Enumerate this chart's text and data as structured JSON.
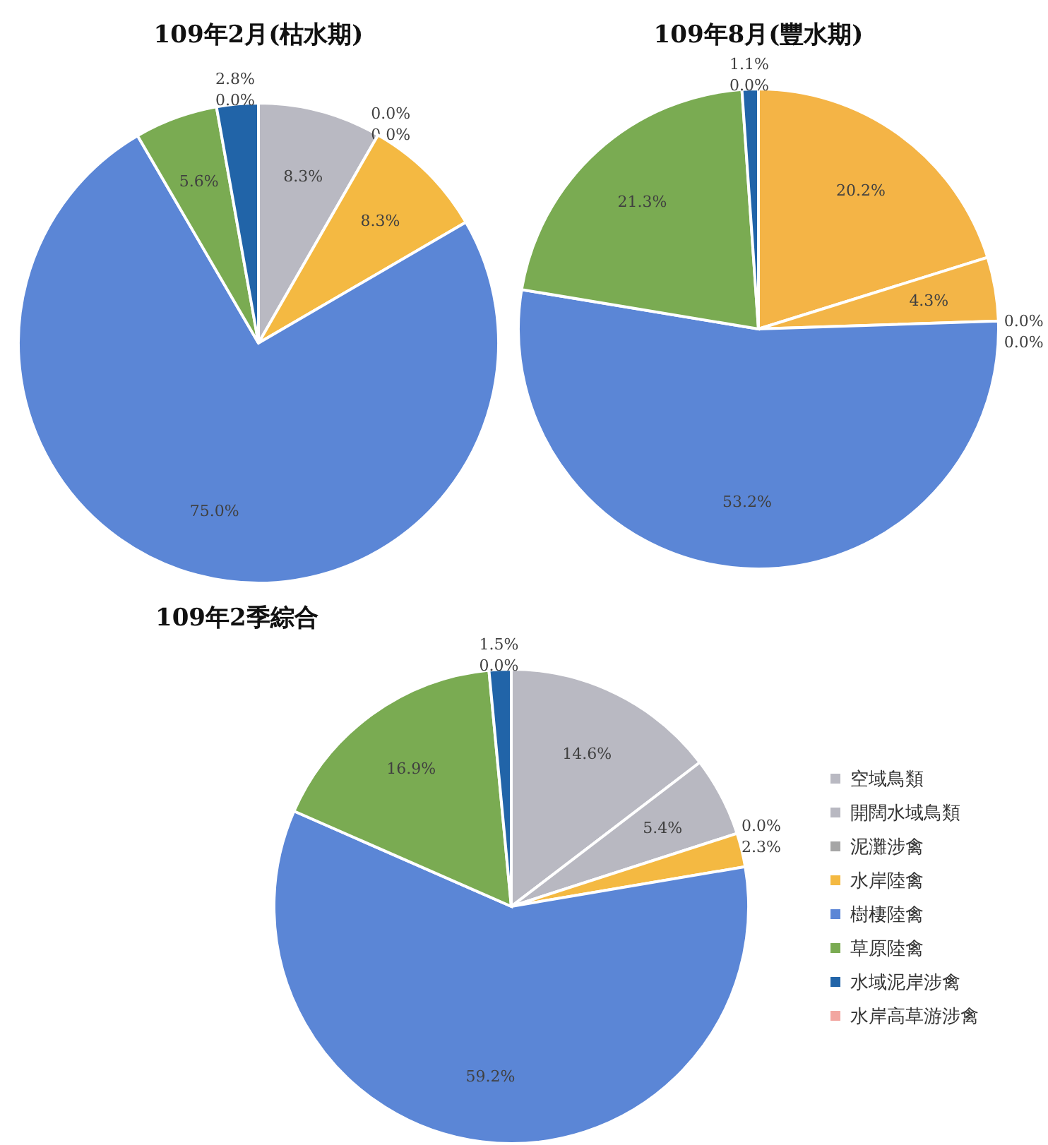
{
  "chart_data": [
    {
      "type": "pie",
      "title": "109年2月(枯水期)",
      "categories": [
        null,
        null,
        null,
        null,
        null,
        null,
        null,
        null
      ],
      "values": [
        8.3,
        0.0,
        0.0,
        8.3,
        75.0,
        5.6,
        2.8,
        0.0
      ],
      "value_labels": [
        "8.3%",
        "0.0%",
        "0.0%",
        "8.3%",
        "75.0%",
        "5.6%",
        "2.8%",
        "0.0%"
      ],
      "colors": [
        "#b9b9c2",
        "#ed7d31",
        "#a5a5a5",
        "#f4b942",
        "#5b86d6",
        "#7aab52",
        "#2164a8",
        "#f2a6a0"
      ],
      "legend": false
    },
    {
      "type": "pie",
      "title": "109年8月(豐水期)",
      "categories": [
        null,
        null,
        null,
        null,
        null,
        null,
        null,
        null
      ],
      "values": [
        20.2,
        4.3,
        0.0,
        0.0,
        53.2,
        21.3,
        1.1,
        0.0
      ],
      "value_labels": [
        "20.2%",
        "4.3%",
        "0.0%",
        "0.0%",
        "53.2%",
        "21.3%",
        "1.1%",
        "0.0%"
      ],
      "colors": [
        "#f4b446",
        "#f3b547",
        "#a5a5a5",
        "#ffc000",
        "#5b86d6",
        "#7aab52",
        "#2164a8",
        "#f2a6a0"
      ],
      "legend": false
    },
    {
      "type": "pie",
      "title": "109年2季綜合",
      "categories": [
        "空域鳥類",
        "開闊水域鳥類",
        "泥灘涉禽",
        "水岸陸禽",
        "樹棲陸禽",
        "草原陸禽",
        "水域泥岸涉禽",
        "水岸高草游涉禽"
      ],
      "values": [
        14.6,
        5.4,
        0.0,
        2.3,
        59.2,
        16.9,
        1.5,
        0.0
      ],
      "value_labels": [
        "14.6%",
        "5.4%",
        "0.0%",
        "2.3%",
        "59.2%",
        "16.9%",
        "1.5%",
        "0.0%"
      ],
      "colors": [
        "#b9b9c2",
        "#b8b8c1",
        "#a5a5a5",
        "#f4b942",
        "#5b86d6",
        "#7aab52",
        "#2164a8",
        "#f2a6a0"
      ],
      "legend": "right"
    }
  ]
}
